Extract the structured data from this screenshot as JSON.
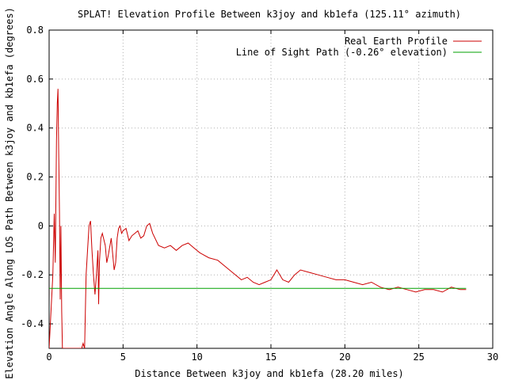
{
  "chart_data": {
    "type": "line",
    "title": "SPLAT! Elevation Profile Between k3joy and kb1efa (125.11° azimuth)",
    "xlabel": "Distance Between k3joy and kb1efa (28.20 miles)",
    "ylabel": "Elevation Angle Along LOS Path Between k3joy and kb1efa (degrees)",
    "xlim": [
      0,
      30
    ],
    "ylim": [
      -0.5,
      0.8
    ],
    "xticks": [
      0,
      5,
      10,
      15,
      20,
      25,
      30
    ],
    "xtick_labels": [
      "0",
      "5",
      "10",
      "15",
      "20",
      "25",
      "30"
    ],
    "yticks": [
      -0.4,
      -0.2,
      0,
      0.2,
      0.4,
      0.6,
      0.8
    ],
    "ytick_labels": [
      "-0.4",
      "-0.2",
      "0",
      "0.2",
      "0.4",
      "0.6",
      "0.8"
    ],
    "grid": true,
    "legend_position": "top-right",
    "series": [
      {
        "name": "Real Earth Profile",
        "color": "#cc0000",
        "x": [
          0.0,
          0.25,
          0.35,
          0.42,
          0.5,
          0.55,
          0.6,
          0.65,
          0.7,
          0.75,
          0.8,
          0.85,
          0.9,
          1.0,
          1.2,
          1.5,
          1.8,
          2.2,
          2.3,
          2.4,
          2.5,
          2.6,
          2.7,
          2.8,
          2.9,
          3.0,
          3.1,
          3.2,
          3.3,
          3.35,
          3.4,
          3.5,
          3.6,
          3.8,
          3.9,
          4.0,
          4.2,
          4.4,
          4.5,
          4.6,
          4.7,
          4.8,
          4.9,
          5.0,
          5.2,
          5.4,
          5.6,
          5.8,
          6.0,
          6.2,
          6.4,
          6.6,
          6.8,
          7.0,
          7.4,
          7.8,
          8.2,
          8.6,
          9.0,
          9.4,
          9.8,
          10.2,
          10.8,
          11.4,
          12.0,
          12.6,
          13.0,
          13.4,
          13.8,
          14.2,
          14.6,
          15.0,
          15.4,
          15.8,
          16.2,
          16.6,
          17.0,
          17.6,
          18.2,
          18.8,
          19.4,
          20.0,
          20.6,
          21.2,
          21.8,
          22.4,
          23.0,
          23.6,
          24.2,
          24.8,
          25.4,
          26.0,
          26.6,
          27.2,
          27.8,
          28.2
        ],
        "y": [
          -0.5,
          -0.2,
          0.05,
          -0.15,
          0.35,
          0.5,
          0.56,
          0.3,
          0.05,
          -0.3,
          0.0,
          -0.35,
          -0.5,
          -0.5,
          -0.5,
          -0.5,
          -0.5,
          -0.5,
          -0.48,
          -0.5,
          -0.2,
          -0.1,
          0.0,
          0.02,
          -0.1,
          -0.2,
          -0.28,
          -0.2,
          -0.1,
          -0.32,
          -0.15,
          -0.05,
          -0.03,
          -0.08,
          -0.15,
          -0.12,
          -0.05,
          -0.18,
          -0.15,
          -0.05,
          -0.01,
          0.0,
          -0.03,
          -0.02,
          -0.01,
          -0.06,
          -0.04,
          -0.03,
          -0.02,
          -0.05,
          -0.04,
          0.0,
          0.01,
          -0.03,
          -0.08,
          -0.09,
          -0.08,
          -0.1,
          -0.08,
          -0.07,
          -0.09,
          -0.11,
          -0.13,
          -0.14,
          -0.17,
          -0.2,
          -0.22,
          -0.21,
          -0.23,
          -0.24,
          -0.23,
          -0.22,
          -0.18,
          -0.22,
          -0.23,
          -0.2,
          -0.18,
          -0.19,
          -0.2,
          -0.21,
          -0.22,
          -0.22,
          -0.23,
          -0.24,
          -0.23,
          -0.25,
          -0.26,
          -0.25,
          -0.26,
          -0.27,
          -0.26,
          -0.26,
          -0.27,
          -0.25,
          -0.26,
          -0.26
        ]
      },
      {
        "name": "Line of Sight Path (-0.26° elevation)",
        "color": "#00a000",
        "x": [
          0,
          28.2
        ],
        "y": [
          -0.255,
          -0.255
        ]
      }
    ]
  }
}
